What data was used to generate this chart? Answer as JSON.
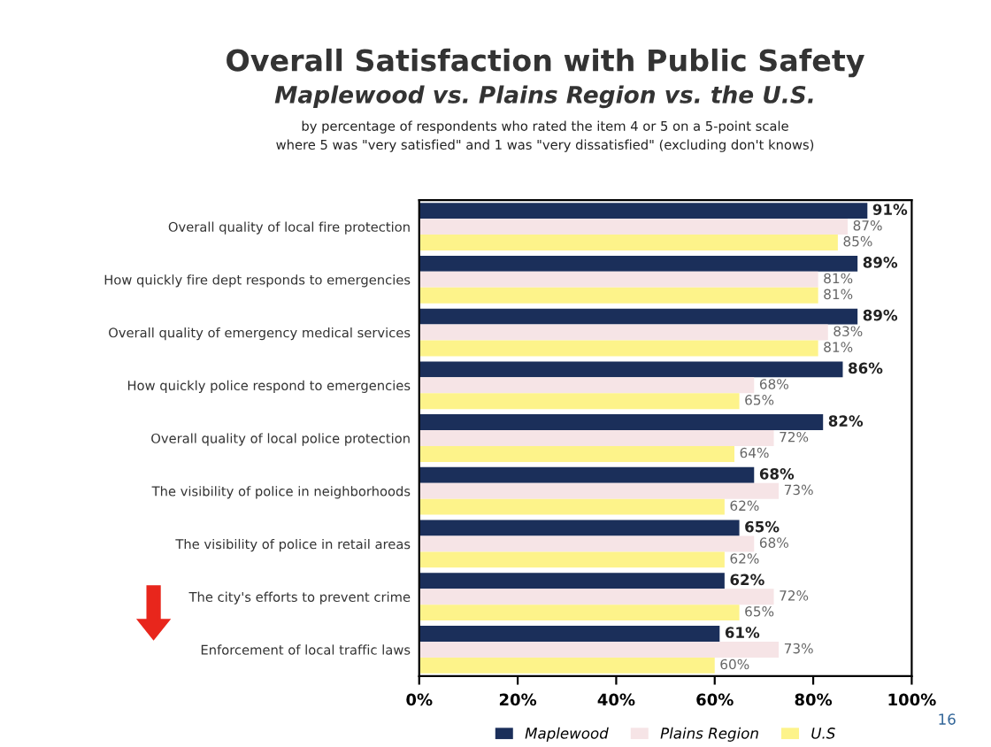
{
  "chart_data": {
    "type": "bar",
    "orientation": "horizontal",
    "title": "Overall Satisfaction with Public Safety",
    "subtitle": "Maplewood vs. Plains Region vs. the U.S.",
    "annotations": [
      "by percentage of respondents who rated the item 4 or 5 on a 5-point scale",
      "where 5 was \"very satisfied\" and 1 was \"very dissatisfied\" (excluding don't knows)",
      "16"
    ],
    "categories": [
      "Overall quality of local fire protection",
      "How quickly fire dept responds to emergencies",
      "Overall quality of emergency medical services",
      "How quickly police respond to emergencies",
      "Overall quality of local police protection",
      "The visibility of police in neighborhoods",
      "The visibility of police in retail areas",
      "The city's efforts to prevent crime",
      "Enforcement of local traffic laws"
    ],
    "series": [
      {
        "name": "Maplewood",
        "color": "#1b2f5a",
        "values": [
          91,
          89,
          89,
          86,
          82,
          68,
          65,
          62,
          61
        ],
        "value_labels": [
          "91%",
          "89%",
          "89%",
          "86%",
          "82%",
          "68%",
          "65%",
          "62%",
          "61%"
        ]
      },
      {
        "name": "Plains Region",
        "color": "#f6e4e6",
        "values": [
          87,
          81,
          83,
          68,
          72,
          73,
          68,
          72,
          73
        ],
        "value_labels": [
          "87%",
          "81%",
          "83%",
          "68%",
          "72%",
          "73%",
          "68%",
          "72%",
          "73%"
        ]
      },
      {
        "name": "U.S",
        "color": "#fdf38a",
        "values": [
          85,
          81,
          81,
          65,
          64,
          62,
          62,
          65,
          60
        ],
        "value_labels": [
          "85%",
          "81%",
          "81%",
          "65%",
          "64%",
          "62%",
          "62%",
          "65%",
          "60%"
        ]
      }
    ],
    "xlim": [
      0,
      100
    ],
    "xticks": [
      {
        "value": 0,
        "label": "0%"
      },
      {
        "value": 20,
        "label": "20%"
      },
      {
        "value": 40,
        "label": "40%"
      },
      {
        "value": 60,
        "label": "60%"
      },
      {
        "value": 80,
        "label": "80%"
      },
      {
        "value": 100,
        "label": "100%"
      }
    ],
    "legend": "bottom"
  }
}
